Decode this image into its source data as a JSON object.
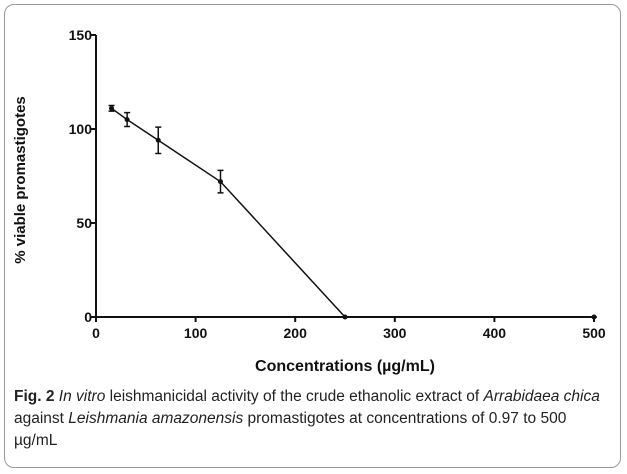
{
  "chart_data": {
    "type": "line",
    "x": [
      15.6,
      31.25,
      62.5,
      125,
      250,
      500
    ],
    "series": [
      {
        "values": [
          111,
          105,
          94,
          72,
          0,
          0
        ],
        "errors": [
          1.5,
          3.7,
          7,
          6,
          0,
          0
        ],
        "color": "#111111"
      }
    ],
    "xlim": [
      0,
      500
    ],
    "xticks": [
      0,
      100,
      200,
      300,
      400,
      500
    ],
    "ylim": [
      0,
      150
    ],
    "yticks": [
      0,
      50,
      100,
      150
    ],
    "xlabel": "Concentrations (µg/mL)",
    "ylabel": "% viable promastigotes"
  },
  "caption": {
    "label": "Fig. 2",
    "parts": [
      "In vitro",
      "leishmanicidal activity of the crude ethanolic extract of",
      "Arrabidaea chica",
      "against",
      "Leishmania amazonensis",
      "promastigotes at concentrations of 0.97 to 500 µg/mL"
    ]
  }
}
